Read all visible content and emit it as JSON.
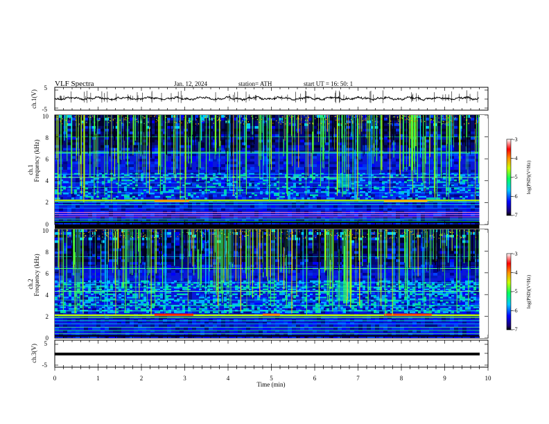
{
  "header": {
    "title": "VLF  Spectra",
    "date": "Jan.  12,  2024",
    "station": "station= ATH",
    "start": "start  UT  =    16: 50: 1"
  },
  "chart_data": [
    {
      "type": "line",
      "panel": "ch1-waveform",
      "ylabel": "ch.1(V)",
      "yticks": [
        "5",
        "-5"
      ],
      "ylim": [
        -5,
        5
      ],
      "xlim": [
        0,
        10
      ],
      "baseline": 0
    },
    {
      "type": "heatmap",
      "panel": "ch1-spectrogram",
      "ylabel": "ch.1",
      "ylabel2": "Frequency  (kHz)",
      "yticks": [
        "10",
        "8",
        "6",
        "4",
        "2",
        "0"
      ],
      "ylim": [
        0,
        10
      ],
      "xlim": [
        0,
        9.8
      ],
      "colorbar": {
        "label": "log(PSD)(V²/Hz)",
        "ticks": [
          "-3",
          "-4",
          "-5",
          "-6",
          "-7"
        ],
        "range": [
          -7,
          -3
        ]
      }
    },
    {
      "type": "heatmap",
      "panel": "ch2-spectrogram",
      "ylabel": "ch.2",
      "ylabel2": "Frequency  (kHz)",
      "yticks": [
        "10",
        "8",
        "6",
        "4",
        "2",
        "0"
      ],
      "ylim": [
        0,
        10
      ],
      "xlim": [
        0,
        9.8
      ],
      "colorbar": {
        "label": "log(PSD)(V²/Hz)",
        "ticks": [
          "-3",
          "-4",
          "-5",
          "-6",
          "-7"
        ],
        "range": [
          -7,
          -3
        ]
      }
    },
    {
      "type": "line",
      "panel": "ch3-waveform",
      "ylabel": "ch.3(V)",
      "yticks": [
        "5",
        "-5"
      ],
      "ylim": [
        -5,
        5
      ],
      "xlim": [
        0,
        10
      ],
      "baseline": -1
    }
  ],
  "xaxis": {
    "label": "Time  (min)",
    "ticks": [
      "0",
      "1",
      "2",
      "3",
      "4",
      "5",
      "6",
      "7",
      "8",
      "9",
      "10"
    ],
    "range": [
      0,
      10
    ]
  }
}
